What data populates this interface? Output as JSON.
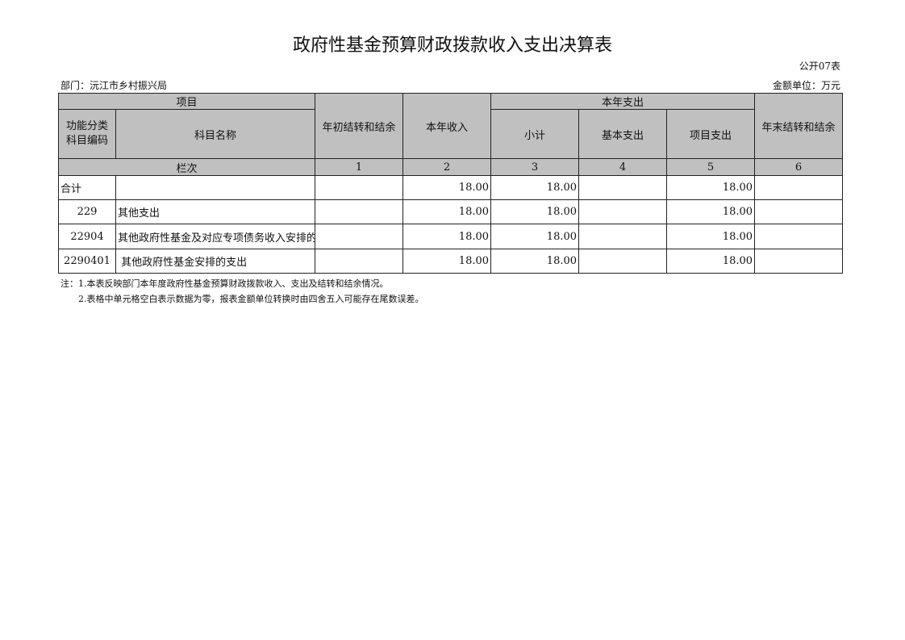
{
  "title": "政府性基金预算财政拨款收入支出决算表",
  "form_no": "公开07表",
  "department": "部门：沅江市乡村振兴局",
  "unit": "金额单位：万元",
  "header": {
    "item": "项目",
    "code": "功能分类科目编码",
    "name": "科目名称",
    "opening": "年初结转和结余",
    "income": "本年收入",
    "expense": "本年支出",
    "subtotal": "小计",
    "basic": "基本支出",
    "project": "项目支出",
    "closing": "年末结转和结余",
    "column_no": "栏次",
    "col_numbers": [
      "1",
      "2",
      "3",
      "4",
      "5",
      "6"
    ]
  },
  "rows": [
    {
      "code": "合计",
      "name": "",
      "opening": "",
      "income": "18.00",
      "subtotal": "18.00",
      "basic": "",
      "project": "18.00",
      "closing": ""
    },
    {
      "code": "229",
      "name": "其他支出",
      "opening": "",
      "income": "18.00",
      "subtotal": "18.00",
      "basic": "",
      "project": "18.00",
      "closing": ""
    },
    {
      "code": "22904",
      "name": "其他政府性基金及对应专项债务收入安排的",
      "opening": "",
      "income": "18.00",
      "subtotal": "18.00",
      "basic": "",
      "project": "18.00",
      "closing": ""
    },
    {
      "code": "2290401",
      "name": " 其他政府性基金安排的支出",
      "opening": "",
      "income": "18.00",
      "subtotal": "18.00",
      "basic": "",
      "project": "18.00",
      "closing": ""
    }
  ],
  "notes": [
    "注：1.本表反映部门本年度政府性基金预算财政拨款收入、支出及结转和结余情况。",
    "2.表格中单元格空白表示数据为零，报表金额单位转换时由四舍五入可能存在尾数误差。"
  ]
}
